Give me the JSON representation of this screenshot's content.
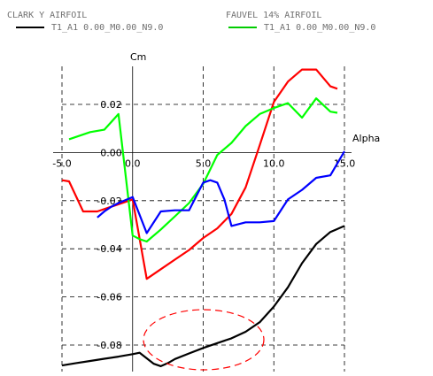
{
  "legend": {
    "left_heading": "CLARK Y AIRFOIL",
    "left_entry": "T1_A1 0.00_M0.00_N9.0",
    "left_color": "#000000",
    "right_heading": "FAUVEL 14% AIRFOIL",
    "right_entry": "T1_A1 0.00_M0.00_N9.0",
    "right_color": "#00cc00"
  },
  "chart_data": {
    "type": "line",
    "title": "",
    "xlabel": "Alpha",
    "ylabel": "Cm",
    "xlim": [
      -5.0,
      15.0
    ],
    "ylim": [
      -0.09,
      0.035
    ],
    "grid": "dashed",
    "x_ticks": [
      {
        "value": -5.0,
        "label": "-5.0"
      },
      {
        "value": 0.0,
        "label": "0.0"
      },
      {
        "value": 5.0,
        "label": "5.0"
      },
      {
        "value": 10.0,
        "label": "10.0"
      },
      {
        "value": 15.0,
        "label": "15.0"
      }
    ],
    "y_ticks": [
      {
        "value": 0.02,
        "label": "0.02"
      },
      {
        "value": 0.0,
        "label": "0.00"
      },
      {
        "value": -0.02,
        "label": "-0.02"
      },
      {
        "value": -0.04,
        "label": "-0.04"
      },
      {
        "value": -0.06,
        "label": "-0.06"
      },
      {
        "value": -0.08,
        "label": "-0.08"
      }
    ],
    "series": [
      {
        "color": "#000000",
        "x": [
          -5.0,
          -4.0,
          -3.0,
          -2.0,
          -1.0,
          0.0,
          0.5,
          1.0,
          1.5,
          2.0,
          2.5,
          3.0,
          4.0,
          5.0,
          6.0,
          7.0,
          8.0,
          9.0,
          10.0,
          11.0,
          12.0,
          13.0,
          14.0,
          15.0
        ],
        "y": [
          -0.0885,
          -0.0875,
          -0.0866,
          -0.0857,
          -0.0848,
          -0.0838,
          -0.0832,
          -0.0855,
          -0.0878,
          -0.0888,
          -0.0875,
          -0.0858,
          -0.0835,
          -0.0812,
          -0.0792,
          -0.0772,
          -0.0745,
          -0.0705,
          -0.064,
          -0.056,
          -0.046,
          -0.038,
          -0.033,
          -0.0305
        ]
      },
      {
        "color": "#ff0000",
        "x": [
          -5.0,
          -4.5,
          -3.5,
          -2.5,
          -1.5,
          -0.5,
          0.0,
          1.0,
          2.0,
          3.0,
          4.0,
          5.0,
          6.0,
          7.0,
          8.0,
          9.0,
          10.0,
          11.0,
          12.0,
          13.0,
          14.0,
          14.5
        ],
        "y": [
          -0.0115,
          -0.012,
          -0.0245,
          -0.0245,
          -0.0225,
          -0.0205,
          -0.0195,
          -0.0525,
          -0.0485,
          -0.0445,
          -0.0405,
          -0.0355,
          -0.0315,
          -0.0255,
          -0.0145,
          0.003,
          0.021,
          0.0295,
          0.0345,
          0.0345,
          0.0275,
          0.0265
        ]
      },
      {
        "color": "#00ff00",
        "x": [
          -4.5,
          -3.0,
          -2.0,
          -1.0,
          0.0,
          0.5,
          1.0,
          2.0,
          3.0,
          4.0,
          5.0,
          6.0,
          7.0,
          8.0,
          9.0,
          10.0,
          11.0,
          12.0,
          13.0,
          14.0,
          14.5
        ],
        "y": [
          0.0055,
          0.0085,
          0.0095,
          0.016,
          -0.0345,
          -0.036,
          -0.037,
          -0.032,
          -0.0265,
          -0.021,
          -0.013,
          -0.001,
          0.004,
          0.011,
          0.016,
          0.0185,
          0.0205,
          0.0145,
          0.0225,
          0.017,
          0.0165
        ]
      },
      {
        "color": "#0000ff",
        "x": [
          -2.5,
          -2.0,
          -1.5,
          -1.0,
          0.0,
          1.0,
          2.0,
          3.0,
          4.0,
          5.0,
          5.5,
          6.0,
          6.5,
          7.0,
          8.0,
          9.0,
          10.0,
          11.0,
          12.0,
          13.0,
          14.0,
          15.0
        ],
        "y": [
          -0.027,
          -0.0245,
          -0.0225,
          -0.021,
          -0.0185,
          -0.0335,
          -0.0245,
          -0.024,
          -0.024,
          -0.0125,
          -0.0115,
          -0.0125,
          -0.0195,
          -0.0305,
          -0.029,
          -0.029,
          -0.0285,
          -0.0195,
          -0.0155,
          -0.0105,
          -0.0095,
          0.0005
        ]
      }
    ]
  }
}
